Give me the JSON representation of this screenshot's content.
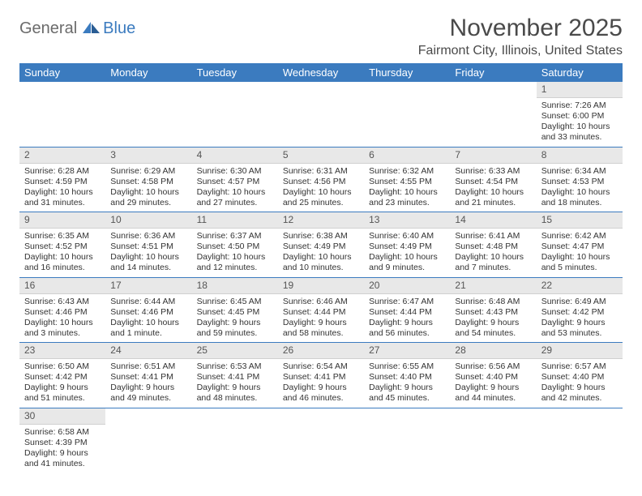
{
  "brand": {
    "part1": "General",
    "part2": "Blue"
  },
  "title": "November 2025",
  "location": "Fairmont City, Illinois, United States",
  "colors": {
    "header_bg": "#3b7bbf",
    "header_text": "#ffffff",
    "daynum_bg": "#e8e8e8",
    "row_border": "#3b7bbf",
    "body_text": "#333333",
    "logo_gray": "#6b6b6b",
    "logo_blue": "#3b7bbf"
  },
  "dayNames": [
    "Sunday",
    "Monday",
    "Tuesday",
    "Wednesday",
    "Thursday",
    "Friday",
    "Saturday"
  ],
  "weeks": [
    [
      null,
      null,
      null,
      null,
      null,
      null,
      {
        "n": "1",
        "sr": "7:26 AM",
        "ss": "6:00 PM",
        "dl": "10 hours and 33 minutes."
      }
    ],
    [
      {
        "n": "2",
        "sr": "6:28 AM",
        "ss": "4:59 PM",
        "dl": "10 hours and 31 minutes."
      },
      {
        "n": "3",
        "sr": "6:29 AM",
        "ss": "4:58 PM",
        "dl": "10 hours and 29 minutes."
      },
      {
        "n": "4",
        "sr": "6:30 AM",
        "ss": "4:57 PM",
        "dl": "10 hours and 27 minutes."
      },
      {
        "n": "5",
        "sr": "6:31 AM",
        "ss": "4:56 PM",
        "dl": "10 hours and 25 minutes."
      },
      {
        "n": "6",
        "sr": "6:32 AM",
        "ss": "4:55 PM",
        "dl": "10 hours and 23 minutes."
      },
      {
        "n": "7",
        "sr": "6:33 AM",
        "ss": "4:54 PM",
        "dl": "10 hours and 21 minutes."
      },
      {
        "n": "8",
        "sr": "6:34 AM",
        "ss": "4:53 PM",
        "dl": "10 hours and 18 minutes."
      }
    ],
    [
      {
        "n": "9",
        "sr": "6:35 AM",
        "ss": "4:52 PM",
        "dl": "10 hours and 16 minutes."
      },
      {
        "n": "10",
        "sr": "6:36 AM",
        "ss": "4:51 PM",
        "dl": "10 hours and 14 minutes."
      },
      {
        "n": "11",
        "sr": "6:37 AM",
        "ss": "4:50 PM",
        "dl": "10 hours and 12 minutes."
      },
      {
        "n": "12",
        "sr": "6:38 AM",
        "ss": "4:49 PM",
        "dl": "10 hours and 10 minutes."
      },
      {
        "n": "13",
        "sr": "6:40 AM",
        "ss": "4:49 PM",
        "dl": "10 hours and 9 minutes."
      },
      {
        "n": "14",
        "sr": "6:41 AM",
        "ss": "4:48 PM",
        "dl": "10 hours and 7 minutes."
      },
      {
        "n": "15",
        "sr": "6:42 AM",
        "ss": "4:47 PM",
        "dl": "10 hours and 5 minutes."
      }
    ],
    [
      {
        "n": "16",
        "sr": "6:43 AM",
        "ss": "4:46 PM",
        "dl": "10 hours and 3 minutes."
      },
      {
        "n": "17",
        "sr": "6:44 AM",
        "ss": "4:46 PM",
        "dl": "10 hours and 1 minute."
      },
      {
        "n": "18",
        "sr": "6:45 AM",
        "ss": "4:45 PM",
        "dl": "9 hours and 59 minutes."
      },
      {
        "n": "19",
        "sr": "6:46 AM",
        "ss": "4:44 PM",
        "dl": "9 hours and 58 minutes."
      },
      {
        "n": "20",
        "sr": "6:47 AM",
        "ss": "4:44 PM",
        "dl": "9 hours and 56 minutes."
      },
      {
        "n": "21",
        "sr": "6:48 AM",
        "ss": "4:43 PM",
        "dl": "9 hours and 54 minutes."
      },
      {
        "n": "22",
        "sr": "6:49 AM",
        "ss": "4:42 PM",
        "dl": "9 hours and 53 minutes."
      }
    ],
    [
      {
        "n": "23",
        "sr": "6:50 AM",
        "ss": "4:42 PM",
        "dl": "9 hours and 51 minutes."
      },
      {
        "n": "24",
        "sr": "6:51 AM",
        "ss": "4:41 PM",
        "dl": "9 hours and 49 minutes."
      },
      {
        "n": "25",
        "sr": "6:53 AM",
        "ss": "4:41 PM",
        "dl": "9 hours and 48 minutes."
      },
      {
        "n": "26",
        "sr": "6:54 AM",
        "ss": "4:41 PM",
        "dl": "9 hours and 46 minutes."
      },
      {
        "n": "27",
        "sr": "6:55 AM",
        "ss": "4:40 PM",
        "dl": "9 hours and 45 minutes."
      },
      {
        "n": "28",
        "sr": "6:56 AM",
        "ss": "4:40 PM",
        "dl": "9 hours and 44 minutes."
      },
      {
        "n": "29",
        "sr": "6:57 AM",
        "ss": "4:40 PM",
        "dl": "9 hours and 42 minutes."
      }
    ],
    [
      {
        "n": "30",
        "sr": "6:58 AM",
        "ss": "4:39 PM",
        "dl": "9 hours and 41 minutes."
      },
      null,
      null,
      null,
      null,
      null,
      null
    ]
  ],
  "labels": {
    "sunrise": "Sunrise:",
    "sunset": "Sunset:",
    "daylight": "Daylight:"
  }
}
